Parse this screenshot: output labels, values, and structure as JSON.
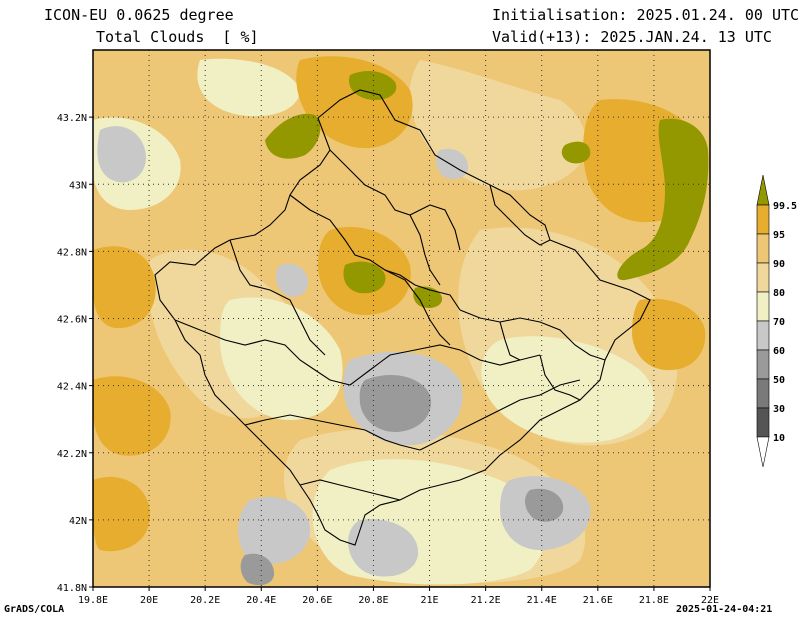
{
  "header": {
    "model": "ICON-EU 0.0625 degree",
    "variable": "Total Clouds  [ %]",
    "init": "Initialisation: 2025.01.24. 00 UTC",
    "valid": "Valid(+13): 2025.JAN.24. 13 UTC"
  },
  "footer": {
    "left": "GrADS/COLA",
    "right": "2025-01-24-04:21"
  },
  "map": {
    "lon_range": [
      19.8,
      22.0
    ],
    "lat_range": [
      41.8,
      43.4
    ],
    "lon_ticks": [
      "19.8E",
      "20E",
      "20.2E",
      "20.4E",
      "20.6E",
      "20.8E",
      "21E",
      "21.2E",
      "21.4E",
      "21.6E",
      "21.8E",
      "22E"
    ],
    "lat_ticks": [
      "41.8N",
      "42N",
      "42.2N",
      "42.4N",
      "42.6N",
      "42.8N",
      "43N",
      "43.2N"
    ],
    "grid": true
  },
  "colorbar": {
    "levels": [
      "10",
      "30",
      "50",
      "60",
      "70",
      "80",
      "90",
      "95",
      "99.5"
    ],
    "colors": {
      "below10": "#ffffff",
      "10-30": "#555555",
      "30-50": "#7a7a7a",
      "50-60": "#9a9a9a",
      "60-70": "#c8c8c8",
      "70-80": "#f0f0c4",
      "80-90": "#f0d89c",
      "90-95": "#eec776",
      "95-99.5": "#e7ad2f",
      "above99.5": "#939700"
    }
  }
}
